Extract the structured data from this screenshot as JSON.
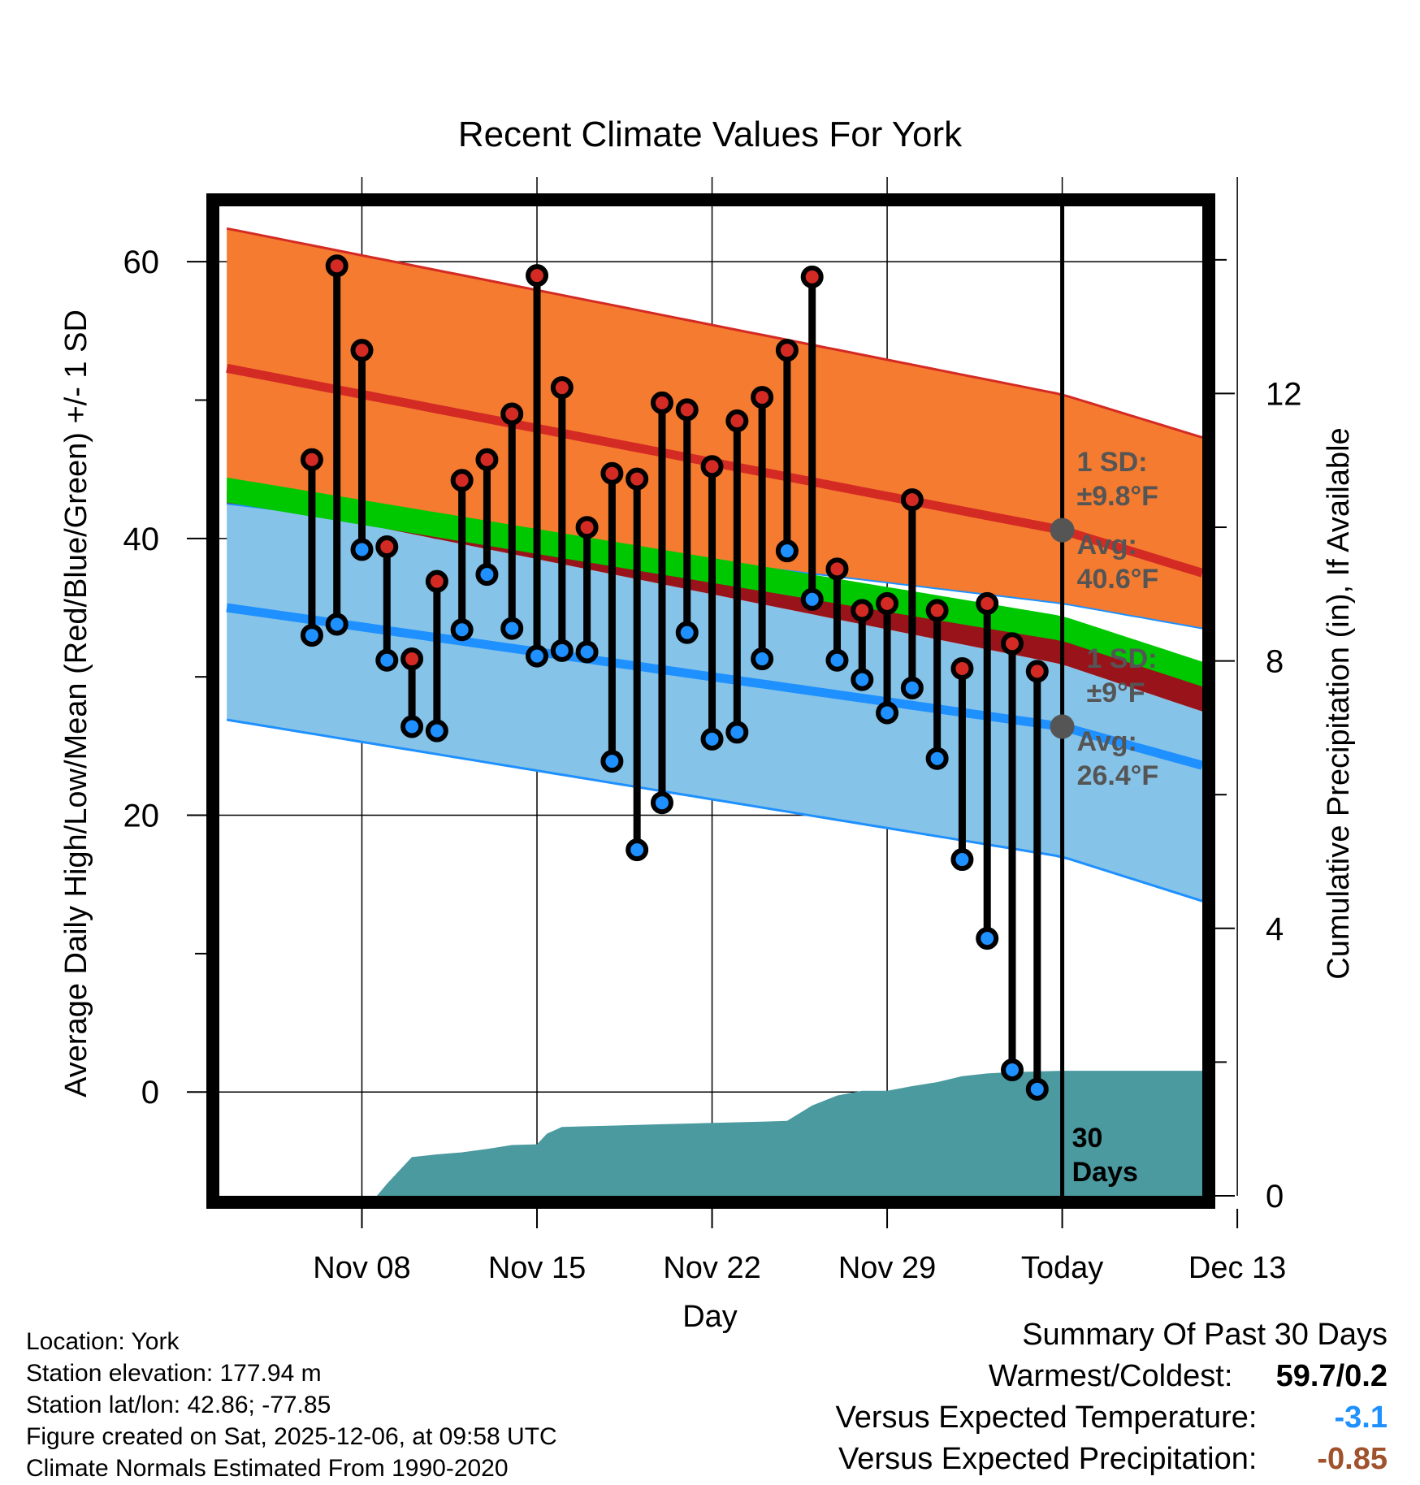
{
  "chart_data": {
    "type": "line",
    "title": "Recent Climate Values For York",
    "xlabel": "Day",
    "ylabel": "Average Daily High/Low/Mean (Red/Blue/Green) +/- 1 SD",
    "y2label": "Cumulative Precipitation (in), If Available",
    "x_range": [
      -26.7,
      12.6
    ],
    "y_range": [
      -7.5,
      64
    ],
    "y2_range": [
      0,
      14.8
    ],
    "x_ticks": [
      {
        "x": -21,
        "label": "Nov 08"
      },
      {
        "x": -14,
        "label": "Nov 15"
      },
      {
        "x": -7,
        "label": "Nov 22"
      },
      {
        "x": 0,
        "label": "Nov 29"
      },
      {
        "x": 7,
        "label": "Today"
      },
      {
        "x": 14,
        "label": "Dec 13"
      }
    ],
    "y_ticks": [
      0,
      20,
      40,
      60
    ],
    "y2_ticks": [
      0,
      4,
      8,
      12
    ],
    "today_x": 7,
    "normals": {
      "x": [
        -26.4,
        7,
        12.6
      ],
      "high_avg": [
        52.3,
        40.6,
        37.5
      ],
      "high_plus_sd": [
        62.4,
        50.4,
        47.3
      ],
      "high_minus_sd": [
        42.5,
        35.3,
        33.5
      ],
      "mean": [
        43.5,
        33.5,
        30.2
      ],
      "low_avg": [
        35.0,
        26.4,
        23.6
      ],
      "low_plus_sd": [
        43.0,
        30.9,
        27.5
      ],
      "low_minus_sd": [
        26.9,
        17.0,
        13.8
      ]
    },
    "series": [
      {
        "name": "Daily High",
        "color": "#d42a24",
        "values": [
          45.7,
          59.7,
          53.6,
          39.4,
          31.3,
          36.9,
          44.2,
          45.7,
          49.0,
          59.0,
          50.9,
          40.8,
          44.7,
          44.3,
          49.8,
          49.3,
          45.2,
          48.5,
          50.2,
          53.6,
          58.9,
          37.8,
          34.8,
          35.3,
          42.8,
          34.8,
          30.6,
          35.3,
          32.4,
          30.4
        ]
      },
      {
        "name": "Daily Low",
        "color": "#1e90ff",
        "values": [
          33.0,
          33.8,
          39.2,
          31.2,
          26.4,
          26.1,
          33.4,
          37.4,
          33.5,
          31.5,
          31.9,
          31.8,
          23.9,
          17.5,
          20.9,
          33.2,
          25.5,
          26.0,
          31.3,
          39.1,
          35.6,
          31.2,
          29.8,
          27.4,
          29.2,
          24.1,
          16.8,
          11.1,
          1.6,
          0.2
        ]
      }
    ],
    "days_x": [
      -23,
      -22,
      -21,
      -20,
      -19,
      -18,
      -17,
      -16,
      -15,
      -14,
      -13,
      -12,
      -11,
      -10,
      -9,
      -8,
      -7,
      -6,
      -5,
      -4,
      -3,
      -2,
      -1,
      0,
      1,
      2,
      3,
      4,
      5,
      6
    ],
    "precipitation": {
      "name": "Cumulative Precipitation",
      "color": "#4a9aa0",
      "x": [
        -26.4,
        -20.4,
        -20.0,
        -19.0,
        -18.0,
        -17.0,
        -16.0,
        -15.0,
        -14.0,
        -13.6,
        -13.0,
        -12.0,
        -11.0,
        -10.0,
        -9.0,
        -8.0,
        -7.0,
        -6.0,
        -5.0,
        -4.0,
        -3.0,
        -2.0,
        -1.0,
        0.0,
        1.0,
        2.0,
        3.0,
        4.0,
        5.0,
        6.0,
        7.0,
        12.6
      ],
      "values": [
        0.0,
        0.0,
        0.18,
        0.58,
        0.62,
        0.65,
        0.7,
        0.76,
        0.77,
        0.93,
        1.03,
        1.04,
        1.05,
        1.06,
        1.07,
        1.08,
        1.09,
        1.1,
        1.11,
        1.12,
        1.35,
        1.5,
        1.57,
        1.57,
        1.64,
        1.7,
        1.79,
        1.83,
        1.85,
        1.86,
        1.87,
        1.87
      ]
    },
    "annotations": {
      "high_sd": {
        "line1": "1 SD:",
        "line2": "±9.8°F"
      },
      "high_avg": {
        "line1": "Avg:",
        "line2": "40.6°F"
      },
      "low_sd": {
        "line1": "1 SD:",
        "line2": "±9°F"
      },
      "low_avg": {
        "line1": "Avg:",
        "line2": "26.4°F"
      },
      "precip_days": {
        "line1": "30",
        "line2": "Days"
      }
    },
    "colors": {
      "high_band": "#f47b30",
      "high_line": "#d42a24",
      "mean_band": "#00c800",
      "overlap": "#98141a",
      "low_band": "#86c3e8",
      "low_line": "#1e90ff",
      "annotation": "#555555"
    }
  },
  "footer": {
    "location": "Location: York",
    "elevation": "Station elevation: 177.94 m",
    "latlon": "Station lat/lon: 42.86; -77.85",
    "created": "Figure created on Sat, 2025-12-06, at 09:58 UTC",
    "normals": "Climate Normals Estimated From 1990-2020"
  },
  "summary": {
    "title": "Summary Of Past 30 Days",
    "warmest_label": "Warmest/Coldest:",
    "warmest_value": "59.7/0.2",
    "temp_label": "Versus Expected Temperature:",
    "temp_value": "-3.1",
    "temp_color": "#1e90ff",
    "precip_label": "Versus Expected Precipitation:",
    "precip_value": "-0.85",
    "precip_color": "#a0522d"
  }
}
